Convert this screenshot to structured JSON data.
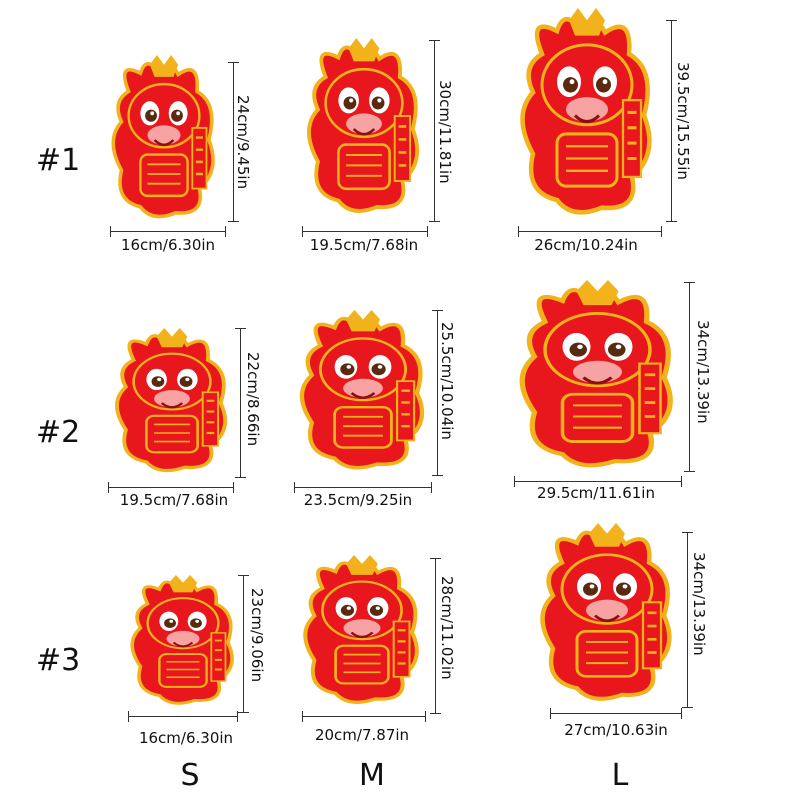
{
  "rows": [
    {
      "label": "#1",
      "items": [
        {
          "width": "16cm/6.30in",
          "height": "24cm/9.45in"
        },
        {
          "width": "19.5cm/7.68in",
          "height": "30cm/11.81in"
        },
        {
          "width": "26cm/10.24in",
          "height": "39.5cm/15.55in"
        }
      ]
    },
    {
      "label": "#2",
      "items": [
        {
          "width": "19.5cm/7.68in",
          "height": "22cm/8.66in"
        },
        {
          "width": "23.5cm/9.25in",
          "height": "25.5cm/10.04in"
        },
        {
          "width": "29.5cm/11.61in",
          "height": "34cm/13.39in"
        }
      ]
    },
    {
      "label": "#3",
      "items": [
        {
          "width": "16cm/6.30in",
          "height": "23cm/9.06in"
        },
        {
          "width": "20cm/7.87in",
          "height": "28cm/11.02in"
        },
        {
          "width": "27cm/10.63in",
          "height": "34cm/13.39in"
        }
      ]
    }
  ],
  "sizes": [
    "S",
    "M",
    "L"
  ],
  "colors": {
    "red": "#e8171d",
    "gold": "#f2b21b",
    "pink": "#f7a3a3",
    "ink": "#333333"
  }
}
